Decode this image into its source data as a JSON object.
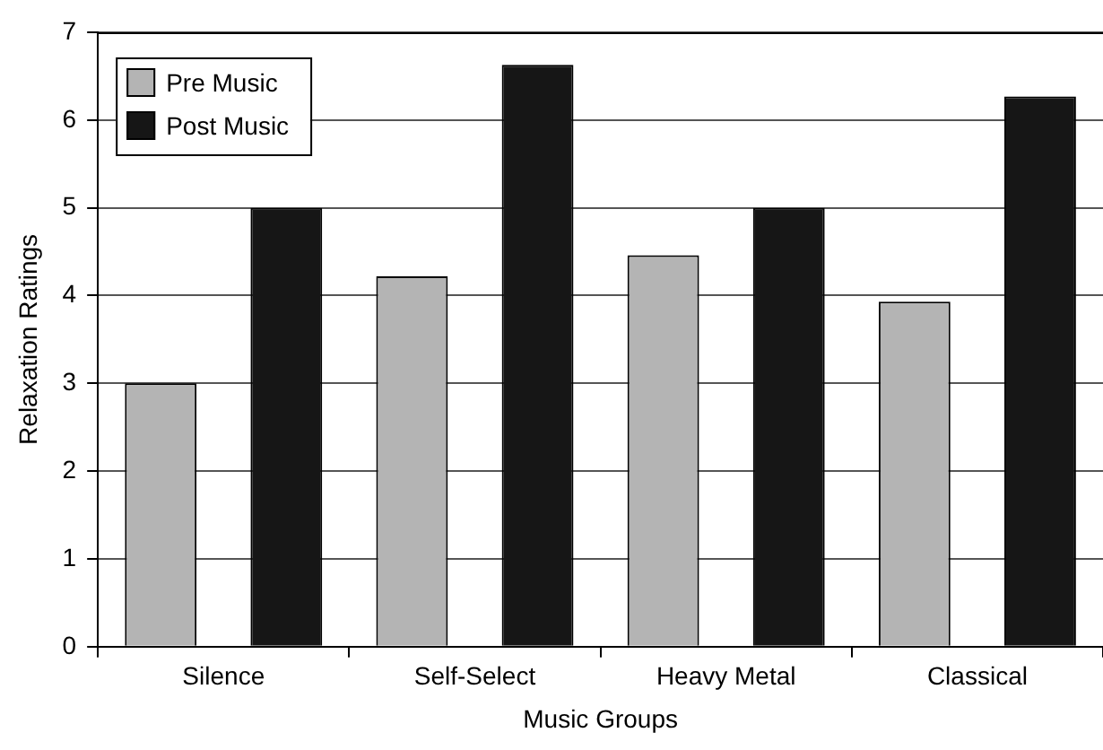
{
  "chart_data": {
    "type": "bar",
    "xlabel": "Music Groups",
    "ylabel": "Relaxation Ratings",
    "categories": [
      "Silence",
      "Self-Select",
      "Heavy Metal",
      "Classical"
    ],
    "series": [
      {
        "name": "Pre Music",
        "color": "#b4b4b4",
        "values": [
          3,
          4.22,
          4.46,
          3.93
        ]
      },
      {
        "name": "Post Music",
        "color": "#161616",
        "values": [
          5,
          6.63,
          5,
          6.27
        ]
      }
    ],
    "ylim": [
      0,
      7
    ],
    "yticks": [
      0,
      1,
      2,
      3,
      4,
      5,
      6,
      7
    ],
    "grid": "y",
    "legend": "top left"
  }
}
